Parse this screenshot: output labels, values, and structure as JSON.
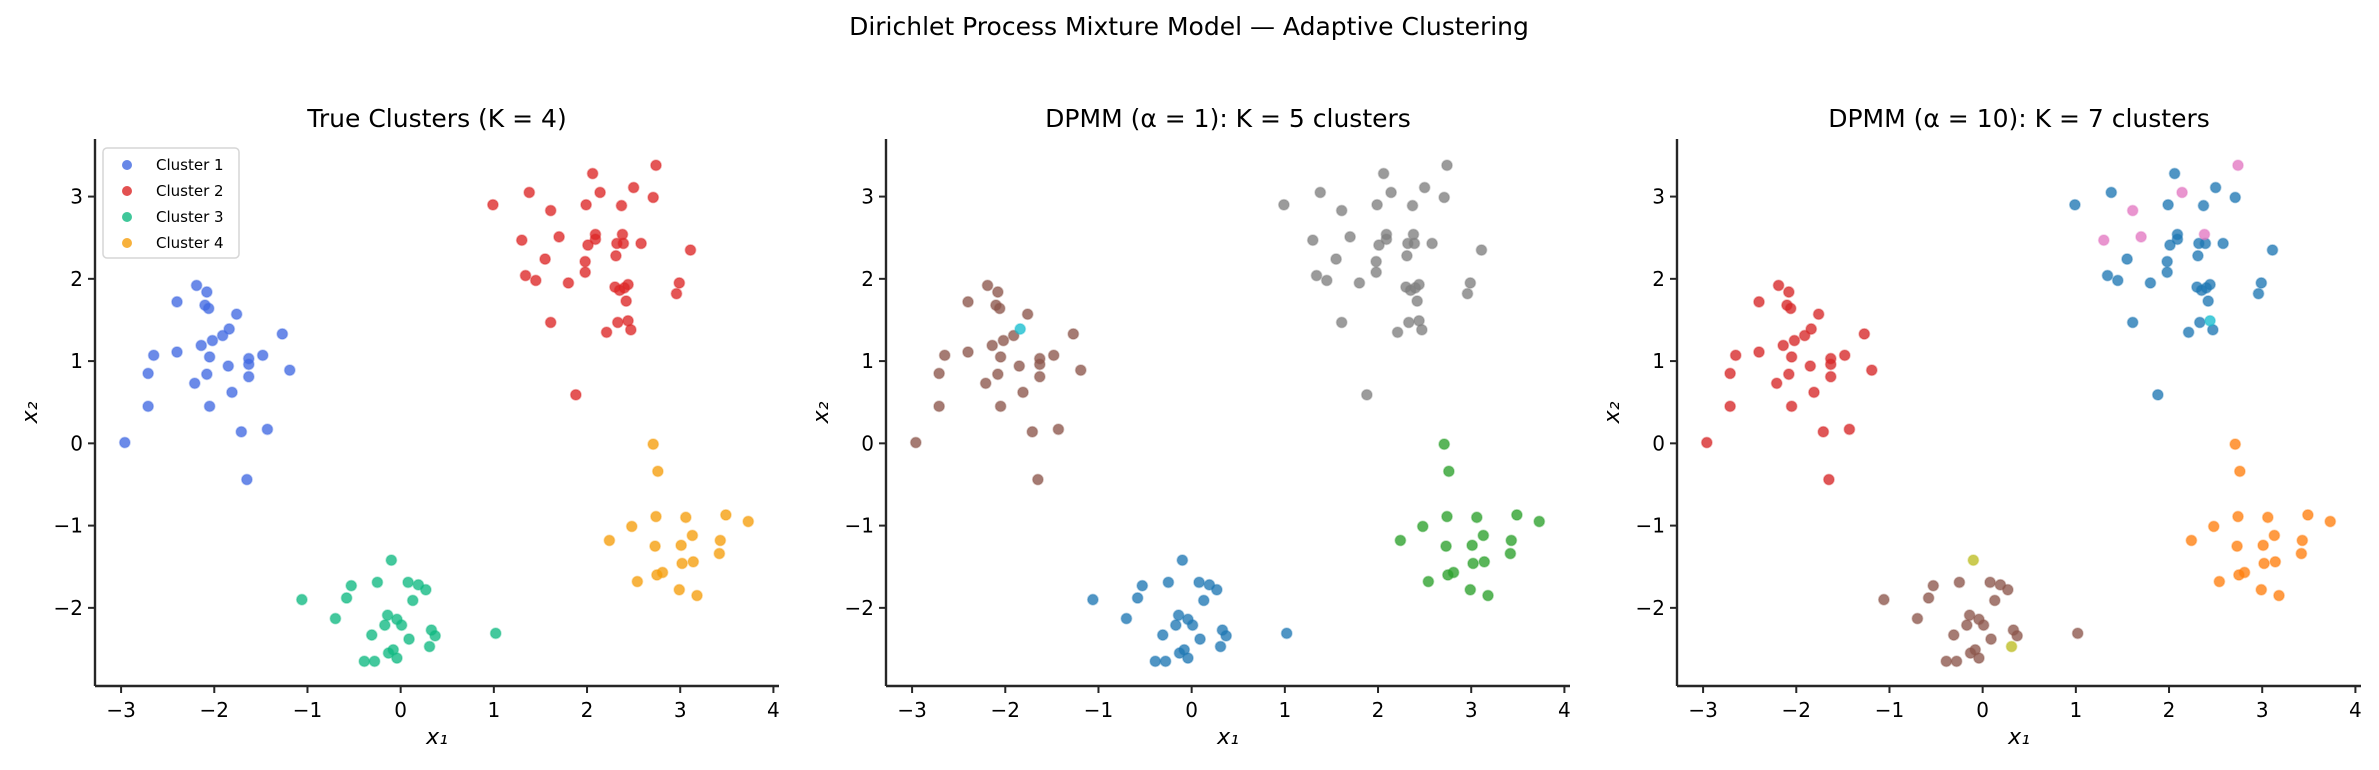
{
  "figure": {
    "suptitle": "Dirichlet Process Mixture Model — Adaptive Clustering"
  },
  "chart_data": [
    {
      "type": "scatter",
      "title": "True Clusters (K = 4)",
      "xlabel": "x₁",
      "ylabel": "x₂",
      "xlim": [
        -3.28,
        4.06
      ],
      "ylim": [
        -2.95,
        3.7
      ],
      "xticks": [
        -3,
        -2,
        -1,
        0,
        1,
        2,
        3,
        4
      ],
      "xtick_labels": [
        "−3",
        "−2",
        "−1",
        "0",
        "1",
        "2",
        "3",
        "4"
      ],
      "yticks": [
        -2,
        -1,
        0,
        1,
        2,
        3
      ],
      "ytick_labels": [
        "−2",
        "−1",
        "0",
        "1",
        "2",
        "3"
      ],
      "grid": false,
      "legend": "upper-left",
      "series": [
        {
          "name": "Cluster 1",
          "color": "#4169E1",
          "x": [
            -2.19,
            -2.08,
            -2.1,
            -2.06,
            -1.76,
            -2.4,
            -1.84,
            -1.91,
            -1.27,
            -2.02,
            -2.14,
            -2.4,
            -2.05,
            -1.63,
            -1.48,
            -1.63,
            -1.85,
            -1.19,
            -2.08,
            -1.63,
            -2.21,
            -1.81,
            -2.05,
            -1.71,
            -1.43,
            -2.65,
            -2.71,
            -2.71,
            -2.96,
            -1.65
          ],
          "y": [
            1.92,
            1.84,
            1.68,
            1.64,
            1.57,
            1.72,
            1.39,
            1.31,
            1.33,
            1.25,
            1.19,
            1.11,
            1.05,
            1.03,
            1.07,
            0.96,
            0.94,
            0.89,
            0.84,
            0.81,
            0.73,
            0.62,
            0.45,
            0.14,
            0.17,
            1.07,
            0.85,
            0.45,
            0.01,
            -0.44
          ]
        },
        {
          "name": "Cluster 2",
          "color": "#DC2626",
          "x": [
            2.74,
            2.06,
            1.38,
            2.5,
            2.14,
            0.99,
            1.61,
            1.99,
            2.37,
            2.71,
            2.09,
            2.09,
            2.38,
            1.3,
            1.7,
            2.01,
            2.32,
            2.39,
            2.58,
            3.11,
            1.55,
            1.98,
            2.31,
            1.34,
            1.45,
            1.8,
            1.98,
            2.3,
            2.35,
            2.4,
            2.44,
            2.99,
            2.96,
            2.42,
            1.61,
            2.33,
            2.44,
            2.47,
            2.21,
            1.88
          ],
          "y": [
            3.38,
            3.28,
            3.05,
            3.11,
            3.05,
            2.9,
            2.83,
            2.9,
            2.89,
            2.99,
            2.54,
            2.48,
            2.54,
            2.47,
            2.51,
            2.41,
            2.43,
            2.43,
            2.43,
            2.35,
            2.24,
            2.21,
            2.28,
            2.04,
            1.98,
            1.95,
            2.08,
            1.9,
            1.86,
            1.89,
            1.93,
            1.95,
            1.82,
            1.73,
            1.47,
            1.47,
            1.49,
            1.38,
            1.35,
            0.59
          ]
        },
        {
          "name": "Cluster 3",
          "color": "#10B981",
          "x": [
            -0.1,
            -0.53,
            -0.25,
            0.08,
            0.19,
            0.27,
            -1.06,
            -0.58,
            0.13,
            -0.7,
            -0.14,
            -0.04,
            -0.17,
            0.01,
            -0.31,
            0.09,
            0.33,
            0.37,
            1.02,
            0.31,
            -0.08,
            -0.13,
            -0.04,
            -0.39,
            -0.28
          ],
          "y": [
            -1.42,
            -1.73,
            -1.69,
            -1.69,
            -1.72,
            -1.78,
            -1.9,
            -1.88,
            -1.91,
            -2.13,
            -2.09,
            -2.14,
            -2.21,
            -2.21,
            -2.33,
            -2.38,
            -2.27,
            -2.34,
            -2.31,
            -2.47,
            -2.51,
            -2.55,
            -2.61,
            -2.65,
            -2.65
          ]
        },
        {
          "name": "Cluster 4",
          "color": "#F59E0B",
          "x": [
            2.71,
            2.76,
            2.74,
            3.06,
            3.49,
            3.73,
            2.48,
            3.13,
            2.24,
            2.73,
            3.01,
            3.43,
            3.42,
            3.02,
            3.14,
            2.75,
            2.81,
            2.54,
            2.99,
            3.18
          ],
          "y": [
            -0.01,
            -0.34,
            -0.89,
            -0.9,
            -0.87,
            -0.95,
            -1.01,
            -1.12,
            -1.18,
            -1.25,
            -1.24,
            -1.18,
            -1.34,
            -1.46,
            -1.44,
            -1.6,
            -1.57,
            -1.68,
            -1.78,
            -1.85
          ]
        }
      ]
    },
    {
      "type": "scatter",
      "title": "DPMM (α = 1): K = 5 clusters",
      "xlabel": "x₁",
      "ylabel": "x₂",
      "xlim": [
        -3.28,
        4.06
      ],
      "ylim": [
        -2.95,
        3.7
      ],
      "xticks": [
        -3,
        -2,
        -1,
        0,
        1,
        2,
        3,
        4
      ],
      "xtick_labels": [
        "−3",
        "−2",
        "−1",
        "0",
        "1",
        "2",
        "3",
        "4"
      ],
      "yticks": [
        -2,
        -1,
        0,
        1,
        2,
        3
      ],
      "ytick_labels": [
        "−2",
        "−1",
        "0",
        "1",
        "2",
        "3"
      ],
      "grid": false,
      "series": [
        {
          "color": "#8C564B",
          "x": [
            -2.19,
            -2.08,
            -2.1,
            -2.06,
            -1.76,
            -2.4,
            -1.91,
            -1.27,
            -2.02,
            -2.14,
            -2.4,
            -2.05,
            -1.63,
            -1.48,
            -1.63,
            -1.85,
            -1.19,
            -2.08,
            -1.63,
            -2.21,
            -1.81,
            -2.05,
            -1.71,
            -1.43,
            -2.65,
            -2.71,
            -2.71,
            -2.96,
            -1.65
          ],
          "y": [
            1.92,
            1.84,
            1.68,
            1.64,
            1.57,
            1.72,
            1.31,
            1.33,
            1.25,
            1.19,
            1.11,
            1.05,
            1.03,
            1.07,
            0.96,
            0.94,
            0.89,
            0.84,
            0.81,
            0.73,
            0.62,
            0.45,
            0.14,
            0.17,
            1.07,
            0.85,
            0.45,
            0.01,
            -0.44
          ]
        },
        {
          "color": "#17BECF",
          "x": [
            -1.84
          ],
          "y": [
            1.39
          ]
        },
        {
          "color": "#7F7F7F",
          "x": [
            2.74,
            2.06,
            1.38,
            2.5,
            2.14,
            0.99,
            1.61,
            1.99,
            2.37,
            2.71,
            2.09,
            2.09,
            2.38,
            1.3,
            1.7,
            2.01,
            2.32,
            2.39,
            2.58,
            3.11,
            1.55,
            1.98,
            2.31,
            1.34,
            1.45,
            1.8,
            1.98,
            2.3,
            2.35,
            2.4,
            2.44,
            2.99,
            2.96,
            2.42,
            1.61,
            2.33,
            2.44,
            2.47,
            2.21,
            1.88
          ],
          "y": [
            3.38,
            3.28,
            3.05,
            3.11,
            3.05,
            2.9,
            2.83,
            2.9,
            2.89,
            2.99,
            2.54,
            2.48,
            2.54,
            2.47,
            2.51,
            2.41,
            2.43,
            2.43,
            2.43,
            2.35,
            2.24,
            2.21,
            2.28,
            2.04,
            1.98,
            1.95,
            2.08,
            1.9,
            1.86,
            1.89,
            1.93,
            1.95,
            1.82,
            1.73,
            1.47,
            1.47,
            1.49,
            1.38,
            1.35,
            0.59
          ]
        },
        {
          "color": "#1F77B4",
          "x": [
            -0.1,
            -0.53,
            -0.25,
            0.08,
            0.19,
            0.27,
            -1.06,
            -0.58,
            0.13,
            -0.7,
            -0.14,
            -0.04,
            -0.17,
            0.01,
            -0.31,
            0.09,
            0.33,
            0.37,
            1.02,
            0.31,
            -0.08,
            -0.13,
            -0.04,
            -0.39,
            -0.28
          ],
          "y": [
            -1.42,
            -1.73,
            -1.69,
            -1.69,
            -1.72,
            -1.78,
            -1.9,
            -1.88,
            -1.91,
            -2.13,
            -2.09,
            -2.14,
            -2.21,
            -2.21,
            -2.33,
            -2.38,
            -2.27,
            -2.34,
            -2.31,
            -2.47,
            -2.51,
            -2.55,
            -2.61,
            -2.65,
            -2.65
          ]
        },
        {
          "color": "#2CA02C",
          "x": [
            2.71,
            2.76,
            2.74,
            3.06,
            3.49,
            3.73,
            2.48,
            3.13,
            2.24,
            2.73,
            3.01,
            3.43,
            3.42,
            3.02,
            3.14,
            2.75,
            2.81,
            2.54,
            2.99,
            3.18
          ],
          "y": [
            -0.01,
            -0.34,
            -0.89,
            -0.9,
            -0.87,
            -0.95,
            -1.01,
            -1.12,
            -1.18,
            -1.25,
            -1.24,
            -1.18,
            -1.34,
            -1.46,
            -1.44,
            -1.6,
            -1.57,
            -1.68,
            -1.78,
            -1.85
          ]
        }
      ]
    },
    {
      "type": "scatter",
      "title": "DPMM (α = 10): K = 7 clusters",
      "xlabel": "x₁",
      "ylabel": "x₂",
      "xlim": [
        -3.28,
        4.06
      ],
      "ylim": [
        -2.95,
        3.7
      ],
      "xticks": [
        -3,
        -2,
        -1,
        0,
        1,
        2,
        3,
        4
      ],
      "xtick_labels": [
        "−3",
        "−2",
        "−1",
        "0",
        "1",
        "2",
        "3",
        "4"
      ],
      "yticks": [
        -2,
        -1,
        0,
        1,
        2,
        3
      ],
      "ytick_labels": [
        "−2",
        "−1",
        "0",
        "1",
        "2",
        "3"
      ],
      "grid": false,
      "series": [
        {
          "color": "#D62728",
          "x": [
            -2.19,
            -2.08,
            -2.1,
            -2.06,
            -1.76,
            -2.4,
            -1.84,
            -1.91,
            -1.27,
            -2.02,
            -2.14,
            -2.4,
            -2.05,
            -1.63,
            -1.48,
            -1.63,
            -1.85,
            -1.19,
            -2.08,
            -1.63,
            -2.21,
            -1.81,
            -2.05,
            -1.71,
            -1.43,
            -2.65,
            -2.71,
            -2.71,
            -2.96,
            -1.65
          ],
          "y": [
            1.92,
            1.84,
            1.68,
            1.64,
            1.57,
            1.72,
            1.39,
            1.31,
            1.33,
            1.25,
            1.19,
            1.11,
            1.05,
            1.03,
            1.07,
            0.96,
            0.94,
            0.89,
            0.84,
            0.81,
            0.73,
            0.62,
            0.45,
            0.14,
            0.17,
            1.07,
            0.85,
            0.45,
            0.01,
            -0.44
          ]
        },
        {
          "color": "#1F77B4",
          "x": [
            2.06,
            1.38,
            2.5,
            0.99,
            1.99,
            2.37,
            2.71,
            2.09,
            2.09,
            2.01,
            2.32,
            2.39,
            2.58,
            3.11,
            1.55,
            1.98,
            2.31,
            1.34,
            1.45,
            1.8,
            1.98,
            2.3,
            2.35,
            2.4,
            2.44,
            2.99,
            2.96,
            2.42,
            1.61,
            2.33,
            2.47,
            2.21,
            1.88
          ],
          "y": [
            3.28,
            3.05,
            3.11,
            2.9,
            2.9,
            2.89,
            2.99,
            2.54,
            2.48,
            2.41,
            2.43,
            2.43,
            2.43,
            2.35,
            2.24,
            2.21,
            2.28,
            2.04,
            1.98,
            1.95,
            2.08,
            1.9,
            1.86,
            1.89,
            1.93,
            1.95,
            1.82,
            1.73,
            1.47,
            1.47,
            1.38,
            1.35,
            0.59
          ]
        },
        {
          "color": "#E377C2",
          "x": [
            2.74,
            2.14,
            1.61,
            2.38,
            1.3,
            1.7
          ],
          "y": [
            3.38,
            3.05,
            2.83,
            2.54,
            2.47,
            2.51
          ]
        },
        {
          "color": "#17BECF",
          "x": [
            2.44
          ],
          "y": [
            1.49
          ]
        },
        {
          "color": "#8C564B",
          "x": [
            -0.53,
            -0.25,
            0.08,
            0.19,
            0.27,
            -1.06,
            -0.58,
            0.13,
            -0.7,
            -0.14,
            -0.04,
            -0.17,
            0.01,
            -0.31,
            0.09,
            0.33,
            0.37,
            1.02,
            -0.08,
            -0.13,
            -0.04,
            -0.39,
            -0.28
          ],
          "y": [
            -1.73,
            -1.69,
            -1.69,
            -1.72,
            -1.78,
            -1.9,
            -1.88,
            -1.91,
            -2.13,
            -2.09,
            -2.14,
            -2.21,
            -2.21,
            -2.33,
            -2.38,
            -2.27,
            -2.34,
            -2.31,
            -2.51,
            -2.55,
            -2.61,
            -2.65,
            -2.65
          ]
        },
        {
          "color": "#BCBD22",
          "x": [
            -0.1,
            0.31
          ],
          "y": [
            -1.42,
            -2.47
          ]
        },
        {
          "color": "#FF7F0E",
          "x": [
            2.71,
            2.76,
            2.74,
            3.06,
            3.49,
            3.73,
            2.48,
            3.13,
            2.24,
            2.73,
            3.01,
            3.43,
            3.42,
            3.02,
            3.14,
            2.75,
            2.81,
            2.54,
            2.99,
            3.18
          ],
          "y": [
            -0.01,
            -0.34,
            -0.89,
            -0.9,
            -0.87,
            -0.95,
            -1.01,
            -1.12,
            -1.18,
            -1.25,
            -1.24,
            -1.18,
            -1.34,
            -1.46,
            -1.44,
            -1.6,
            -1.57,
            -1.68,
            -1.78,
            -1.85
          ]
        }
      ]
    }
  ]
}
